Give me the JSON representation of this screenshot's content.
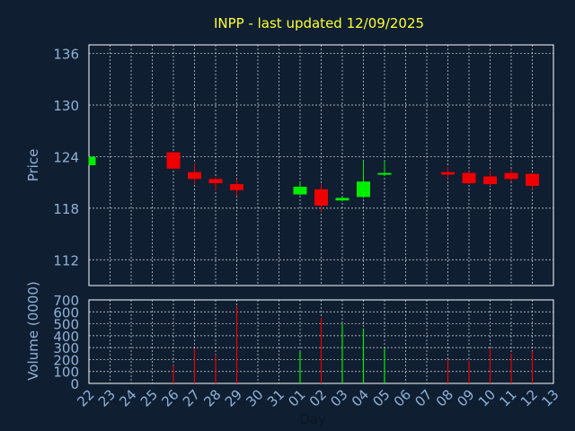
{
  "chart_data": {
    "type": "candlestick",
    "title": "INPP - last updated 12/09/2025",
    "xlabel": "Day",
    "colors": {
      "up": "#00ee00",
      "down": "#ee0000",
      "background": "#0f1e31",
      "title": "#ffff33",
      "axis_text": "#8fb3d9"
    },
    "x_ticks": [
      "22",
      "23",
      "24",
      "25",
      "26",
      "27",
      "28",
      "29",
      "30",
      "31",
      "01",
      "02",
      "03",
      "04",
      "05",
      "06",
      "07",
      "08",
      "09",
      "10",
      "11",
      "12",
      "13"
    ],
    "price_panel": {
      "ylabel": "Price",
      "ylim": [
        109,
        137
      ],
      "yticks": [
        112,
        118,
        124,
        130,
        136
      ],
      "grid": true,
      "candles": [
        {
          "day": "22",
          "open": 123.0,
          "close": 124.0,
          "high": 124.0,
          "low": 123.0
        },
        {
          "day": "26",
          "open": 124.5,
          "close": 122.6,
          "high": 124.5,
          "low": 122.6
        },
        {
          "day": "27",
          "open": 122.2,
          "close": 121.4,
          "high": 123.2,
          "low": 120.8
        },
        {
          "day": "28",
          "open": 121.4,
          "close": 120.9,
          "high": 121.6,
          "low": 120.0
        },
        {
          "day": "29",
          "open": 120.8,
          "close": 120.1,
          "high": 121.4,
          "low": 119.4
        },
        {
          "day": "01",
          "open": 119.6,
          "close": 120.5,
          "high": 121.0,
          "low": 119.5
        },
        {
          "day": "02",
          "open": 120.2,
          "close": 118.3,
          "high": 120.8,
          "low": 117.6
        },
        {
          "day": "03",
          "open": 118.9,
          "close": 119.2,
          "high": 119.3,
          "low": 118.8
        },
        {
          "day": "04",
          "open": 119.3,
          "close": 121.1,
          "high": 123.5,
          "low": 119.2
        },
        {
          "day": "05",
          "open": 121.9,
          "close": 122.1,
          "high": 123.5,
          "low": 121.8
        },
        {
          "day": "08",
          "open": 122.2,
          "close": 121.9,
          "high": 122.8,
          "low": 121.4
        },
        {
          "day": "09",
          "open": 122.1,
          "close": 120.9,
          "high": 122.3,
          "low": 120.8
        },
        {
          "day": "10",
          "open": 121.7,
          "close": 120.8,
          "high": 122.4,
          "low": 120.6
        },
        {
          "day": "11",
          "open": 122.1,
          "close": 121.4,
          "high": 122.6,
          "low": 121.1
        },
        {
          "day": "12",
          "open": 122.0,
          "close": 120.6,
          "high": 122.1,
          "low": 120.1
        }
      ]
    },
    "volume_panel": {
      "ylabel": "Volume (0000)",
      "ylim": [
        0,
        700
      ],
      "yticks": [
        0,
        100,
        200,
        300,
        400,
        500,
        600,
        700
      ],
      "grid": true,
      "bars": [
        {
          "day": "26",
          "value": 150,
          "dir": "down"
        },
        {
          "day": "27",
          "value": 290,
          "dir": "down"
        },
        {
          "day": "28",
          "value": 240,
          "dir": "down"
        },
        {
          "day": "29",
          "value": 650,
          "dir": "down"
        },
        {
          "day": "01",
          "value": 270,
          "dir": "up"
        },
        {
          "day": "02",
          "value": 550,
          "dir": "down"
        },
        {
          "day": "03",
          "value": 500,
          "dir": "up"
        },
        {
          "day": "04",
          "value": 460,
          "dir": "up"
        },
        {
          "day": "05",
          "value": 290,
          "dir": "up"
        },
        {
          "day": "08",
          "value": 200,
          "dir": "down"
        },
        {
          "day": "09",
          "value": 190,
          "dir": "down"
        },
        {
          "day": "10",
          "value": 290,
          "dir": "down"
        },
        {
          "day": "11",
          "value": 250,
          "dir": "down"
        },
        {
          "day": "12",
          "value": 270,
          "dir": "down"
        }
      ]
    }
  }
}
